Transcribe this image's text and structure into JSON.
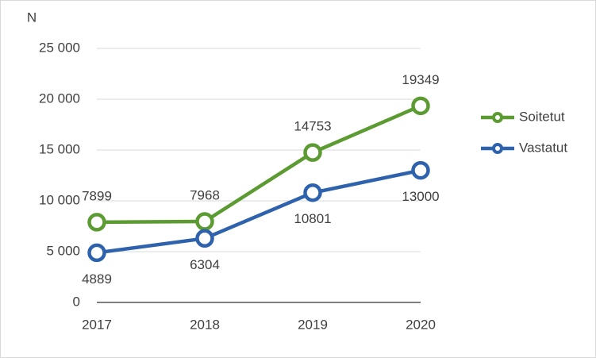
{
  "chart_data": {
    "type": "line",
    "y_label": "N",
    "categories": [
      "2017",
      "2018",
      "2019",
      "2020"
    ],
    "series": [
      {
        "name": "Soitetut",
        "color": "#5b9b32",
        "values": [
          7899,
          7968,
          14753,
          19349
        ]
      },
      {
        "name": "Vastatut",
        "color": "#2e62ad",
        "values": [
          4889,
          6304,
          10801,
          13000
        ]
      }
    ],
    "ylim": [
      0,
      25000
    ],
    "yticks": [
      0,
      {
        "value": 5000,
        "label": "5 000"
      },
      {
        "value": 10000,
        "label": "10 000"
      },
      {
        "value": 15000,
        "label": "15 000"
      },
      {
        "value": 20000,
        "label": "20 000"
      },
      {
        "value": 25000,
        "label": "25 000"
      }
    ],
    "grid": true,
    "legend": "right"
  }
}
